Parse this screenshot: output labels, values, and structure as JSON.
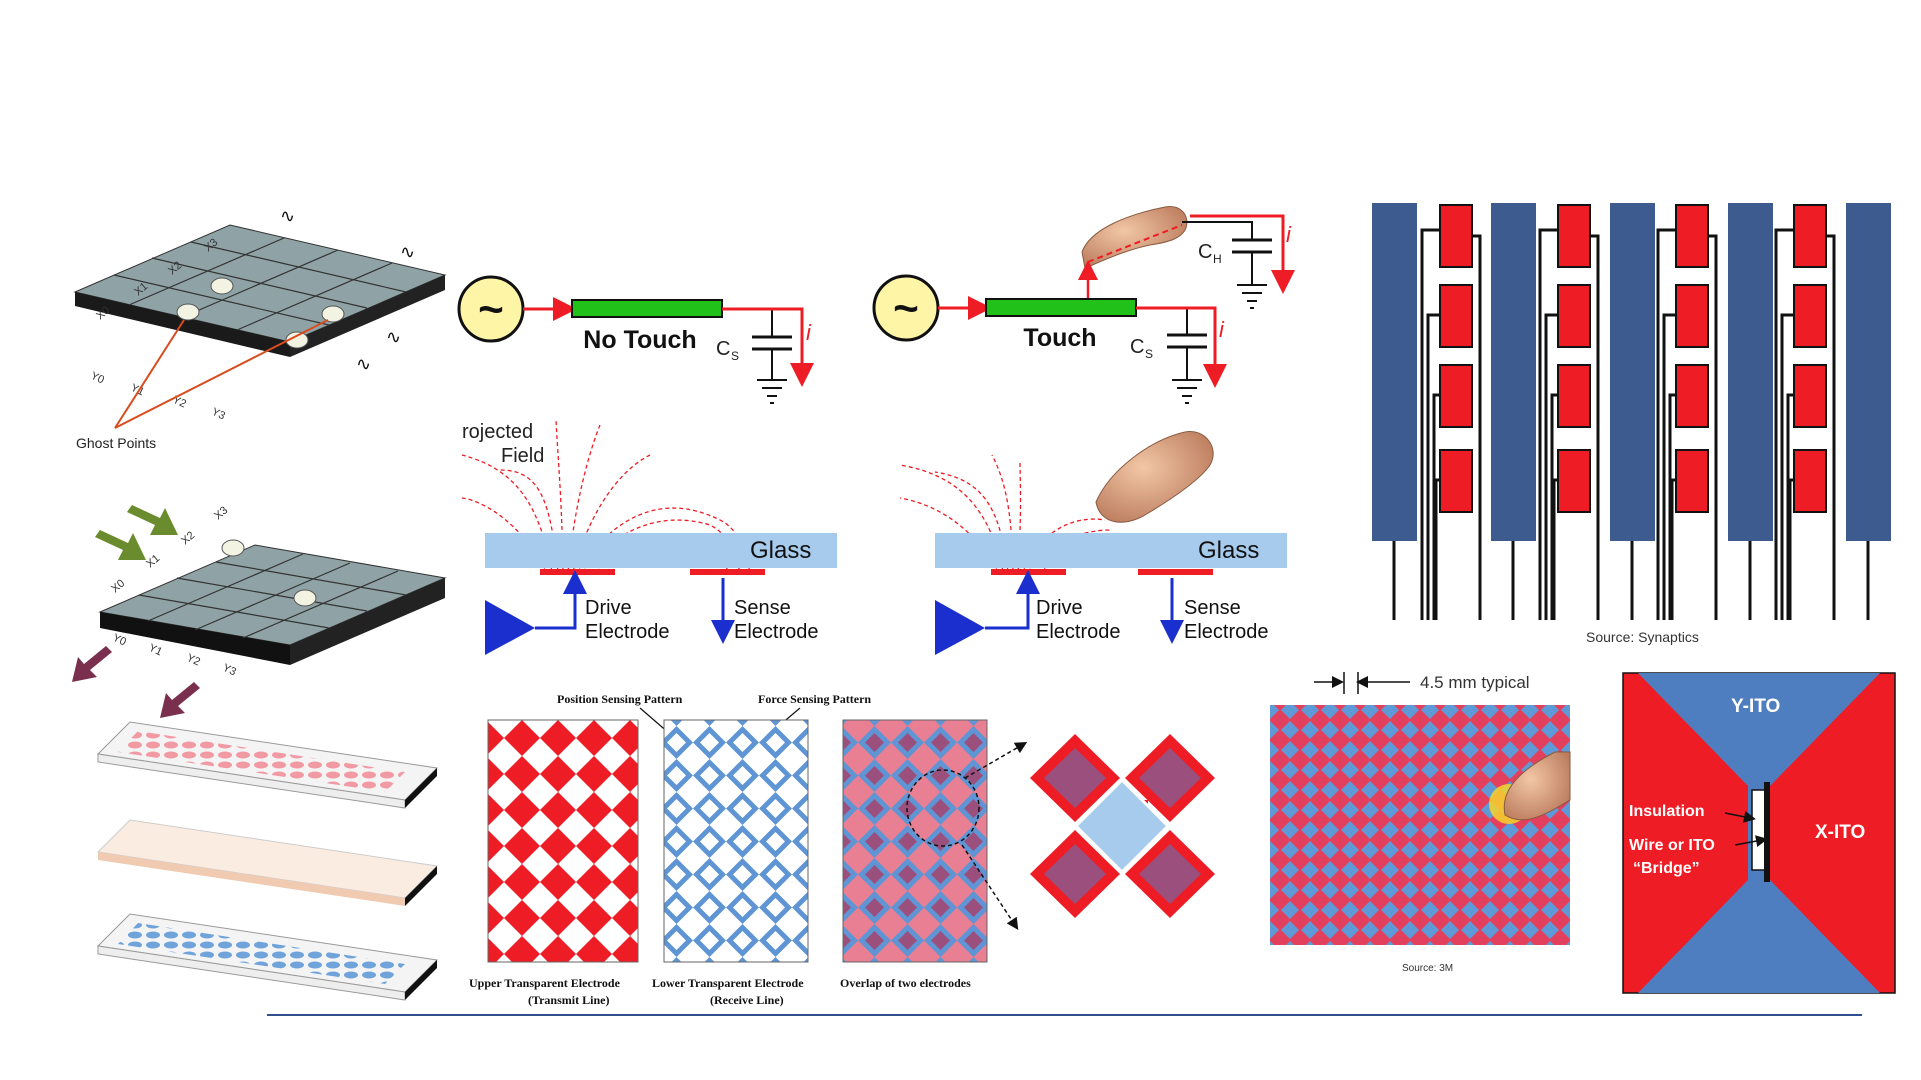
{
  "grid": {
    "x_labels": [
      "X0",
      "X1",
      "X2",
      "X3"
    ],
    "y_labels": [
      "Y0",
      "Y1",
      "Y2",
      "Y3"
    ],
    "ghost_label": "Ghost Points"
  },
  "circuit": {
    "no_touch": "No Touch",
    "touch": "Touch",
    "cs": "C",
    "cs_sub": "S",
    "ch": "C",
    "ch_sub": "H",
    "current": "i",
    "source_symbol": "~"
  },
  "field": {
    "projected_line1": "rojected",
    "projected_line2": "Field",
    "glass": "Glass",
    "drive_line1": "Drive",
    "drive_line2": "Electrode",
    "sense_line1": "Sense",
    "sense_line2": "Electrode"
  },
  "synaptics": {
    "source": "Source: Synaptics"
  },
  "patterns": {
    "position_sensing": "Position Sensing Pattern",
    "force_sensing": "Force Sensing Pattern",
    "upper_line1": "Upper Transparent Electrode",
    "upper_line2": "(Transmit Line)",
    "lower_line1": "Lower Transparent Electrode",
    "lower_line2": "(Receive Line)",
    "overlap": "Overlap of two electrodes"
  },
  "threem": {
    "pitch": "4.5 mm typical",
    "source": "Source: 3M"
  },
  "ito": {
    "y_ito": "Y-ITO",
    "x_ito": "X-ITO",
    "insulation": "Insulation",
    "bridge_line1": "Wire or ITO",
    "bridge_line2": "“Bridge”"
  },
  "colors": {
    "red": "#ee1c24",
    "blue": "#4f7ec0",
    "navy": "#3d5b8f",
    "light_blue": "#a7cbed",
    "green": "#22c11a",
    "yellow": "#fff5a6",
    "rule": "#2f4f8f"
  }
}
